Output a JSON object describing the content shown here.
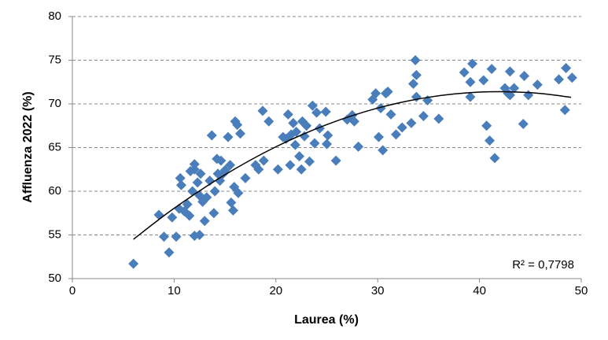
{
  "chart_data": {
    "type": "scatter",
    "x_label": "Laurea (%)",
    "y_label": "Affluenza 2022 (%)",
    "annotation": "R² = 0,7798",
    "color": "#4a7ebb",
    "x": [
      6,
      8.5,
      9,
      9.5,
      9.8,
      10.2,
      10.5,
      10.6,
      10.7,
      11,
      11.3,
      11.5,
      11.6,
      11.8,
      12,
      12,
      12,
      12.3,
      12.5,
      12.5,
      12.6,
      12.8,
      13,
      13.2,
      13.5,
      13.7,
      13.9,
      14,
      14.2,
      14.3,
      14.5,
      14.6,
      14.8,
      15,
      15.3,
      15.5,
      15.6,
      15.8,
      15.9,
      16,
      16.2,
      16.3,
      16.5,
      17,
      18,
      18.3,
      18.7,
      18.8,
      19.3,
      20.2,
      20.7,
      21,
      21.2,
      21.4,
      21.5,
      21.7,
      21.9,
      22,
      22.3,
      22.5,
      22.6,
      22.8,
      23,
      23.3,
      23.6,
      23.8,
      24,
      24.3,
      24.9,
      25,
      25.1,
      25.9,
      27,
      27.5,
      27.7,
      28.1,
      29.5,
      29.8,
      30.1,
      30.3,
      30.5,
      30.8,
      31,
      31.3,
      31.8,
      32.4,
      33.3,
      33.5,
      33.7,
      33.8,
      33.8,
      34.5,
      34.9,
      36,
      38.5,
      39.1,
      39.1,
      39.3,
      40.4,
      40.7,
      41,
      41.2,
      41.5,
      42.5,
      42.8,
      43,
      43,
      43.4,
      44.3,
      44.4,
      44.8,
      45.7,
      47.8,
      48.4,
      48.5,
      49.1
    ],
    "values": [
      51.7,
      57.3,
      54.8,
      53,
      57,
      54.8,
      58,
      61.5,
      60.7,
      57.7,
      58.5,
      57.2,
      62.3,
      60,
      63.1,
      62.5,
      54.9,
      61,
      55,
      59.5,
      62,
      58.8,
      56.6,
      59.3,
      61.2,
      66.4,
      57.5,
      60,
      63.7,
      62,
      61.2,
      63.5,
      62,
      62.4,
      66.2,
      63,
      58.7,
      57.8,
      60.5,
      68,
      67.6,
      59.8,
      66.6,
      61.5,
      63,
      62.5,
      69.2,
      63.5,
      68,
      62.5,
      66.2,
      66,
      68.8,
      63,
      66.5,
      67.8,
      65.3,
      66.8,
      64,
      62.5,
      68,
      66.3,
      67.5,
      63.4,
      69.8,
      65.5,
      69,
      67.2,
      69.1,
      65.4,
      66.4,
      63.5,
      68.2,
      68.7,
      68,
      65.1,
      70.5,
      71.2,
      66.2,
      69.5,
      64.7,
      71.2,
      71.4,
      68.8,
      66.5,
      67.3,
      67.8,
      72.3,
      75,
      73.3,
      70.8,
      68.6,
      70.4,
      68.3,
      73.6,
      70.8,
      72.5,
      74.6,
      72.7,
      67.5,
      65.8,
      74,
      63.8,
      71.8,
      71.2,
      73.7,
      71,
      71.8,
      67.7,
      73.2,
      71,
      72.2,
      72.8,
      69.3,
      74.1,
      73
    ],
    "trendline": {
      "color": "#000000",
      "x": [
        6,
        10,
        15,
        20,
        25,
        30,
        35,
        40,
        45,
        49
      ],
      "values": [
        54.5,
        58.05,
        61.89,
        65.09,
        67.63,
        69.52,
        70.76,
        71.35,
        71.28,
        70.76
      ]
    },
    "xlim": [
      0,
      50
    ],
    "xticks": [
      0,
      10,
      20,
      30,
      40,
      50
    ],
    "ylim": [
      50,
      80
    ],
    "yticks": [
      50,
      55,
      60,
      65,
      70,
      75,
      80
    ],
    "grid": true
  }
}
